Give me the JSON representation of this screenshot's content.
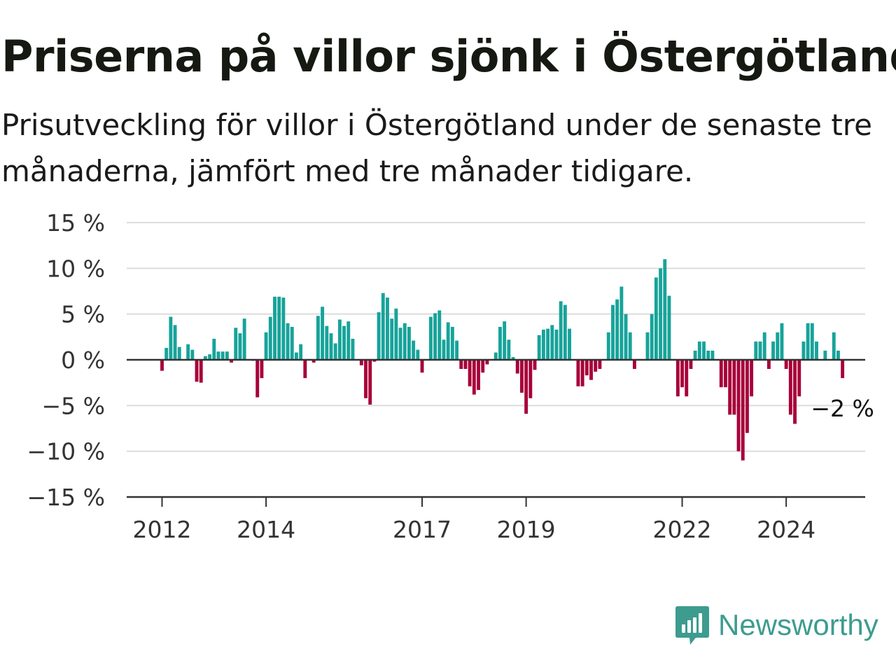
{
  "title": "Priserna på villor sjönk i Östergötland",
  "subtitle": "Prisutveckling för villor i Östergötland under de senaste tre månaderna, jämfört med tre månader tidigare.",
  "brand": {
    "name": "Newsworthy",
    "icon": "newsworthy-logo-icon",
    "color": "#3d9c8f"
  },
  "chart_data": {
    "type": "bar",
    "x_start": "2012-01",
    "x_step": "month",
    "ylim": [
      -15,
      15
    ],
    "yticks": [
      15,
      10,
      5,
      0,
      -5,
      -10,
      -15
    ],
    "ytick_labels": [
      "15 %",
      "10 %",
      "5 %",
      "0 %",
      "−5 %",
      "−10 %",
      "−15 %"
    ],
    "xtick_labels": [
      "2012",
      "2014",
      "2017",
      "2019",
      "2022",
      "2024"
    ],
    "xtick_positions": [
      "2012-01",
      "2014-01",
      "2017-01",
      "2019-01",
      "2022-01",
      "2024-01"
    ],
    "grid": true,
    "colors": {
      "positive": "#17a39a",
      "negative": "#a8003a"
    },
    "values": [
      -1.2,
      1.3,
      4.7,
      3.8,
      1.4,
      0,
      1.7,
      1.1,
      -2.4,
      -2.5,
      0.4,
      0.6,
      2.3,
      0.9,
      0.9,
      0.9,
      -0.3,
      3.5,
      2.9,
      4.5,
      0,
      -0.1,
      -4.1,
      -2.0,
      3.0,
      4.7,
      6.9,
      6.9,
      6.8,
      4.0,
      3.6,
      0.8,
      1.7,
      -2.0,
      0,
      -0.3,
      4.8,
      5.8,
      3.7,
      2.9,
      1.8,
      4.4,
      3.7,
      4.2,
      2.3,
      0,
      -0.6,
      -4.2,
      -4.9,
      -0.2,
      5.2,
      7.3,
      6.8,
      4.5,
      5.6,
      3.5,
      4.0,
      3.6,
      2.1,
      1.1,
      -1.4,
      0,
      4.7,
      5.1,
      5.4,
      2.2,
      4.1,
      3.6,
      2.1,
      -1.0,
      -1.0,
      -2.9,
      -3.8,
      -3.3,
      -1.4,
      -0.5,
      0,
      0.8,
      3.6,
      4.2,
      2.2,
      0.3,
      -1.5,
      -3.6,
      -5.9,
      -4.2,
      -1.1,
      2.7,
      3.3,
      3.4,
      3.8,
      3.3,
      6.4,
      6.0,
      3.4,
      0,
      -2.9,
      -2.9,
      -1.7,
      -2.2,
      -1.3,
      -1.0,
      0,
      3.0,
      6.0,
      6.6,
      8.0,
      5.0,
      3.0,
      -1.0,
      0,
      0,
      3.0,
      5.0,
      9.0,
      10.0,
      11.0,
      7.0,
      0,
      -4.0,
      -3.0,
      -4.0,
      -1.0,
      1.0,
      2.0,
      2.0,
      1.0,
      1.0,
      0,
      -3.0,
      -3.0,
      -6.0,
      -6.0,
      -10.0,
      -11.0,
      -8.0,
      -4.0,
      2.0,
      2.0,
      3.0,
      -1.0,
      2.0,
      3.0,
      4.0,
      -1.0,
      -6.0,
      -7.0,
      -4.0,
      2.0,
      4.0,
      4.0,
      2.0,
      0,
      1.0,
      0,
      3.0,
      1.0,
      -2.0
    ],
    "annotation": {
      "label": "−2 %",
      "value": -2
    }
  }
}
